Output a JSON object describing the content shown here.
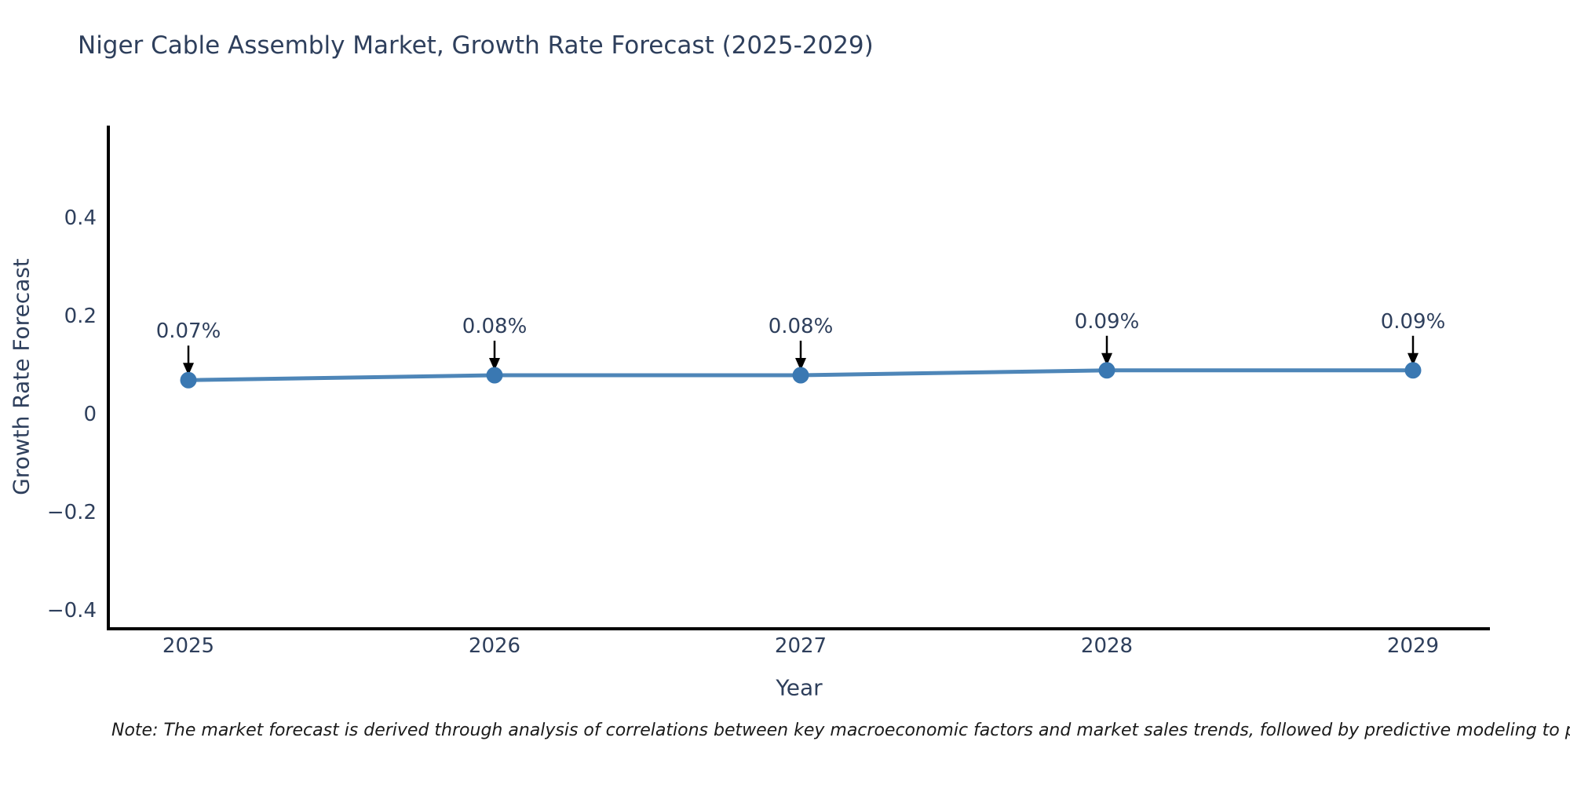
{
  "title": "Niger Cable Assembly Market, Growth Rate Forecast (2025-2029)",
  "note": "Note: The market forecast is derived through analysis of correlations between key macroeconomic factors and market sales trends, followed by predictive modeling to project future sales.",
  "chart_data": {
    "type": "line",
    "title": "Niger Cable Assembly Market, Growth Rate Forecast (2025-2029)",
    "xlabel": "Year",
    "ylabel": "Growth Rate Forecast",
    "x": [
      2025,
      2026,
      2027,
      2028,
      2029
    ],
    "series": [
      {
        "name": "Growth Rate Forecast",
        "values": [
          0.07,
          0.08,
          0.08,
          0.09,
          0.09
        ]
      }
    ],
    "point_labels": [
      "0.07%",
      "0.08%",
      "0.08%",
      "0.09%",
      "0.09%"
    ],
    "xtick_labels": [
      "2025",
      "2026",
      "2027",
      "2028",
      "2029"
    ],
    "yticks": [
      0.4,
      0.2,
      0,
      -0.2,
      -0.4
    ],
    "ytick_labels": [
      "0.4",
      "0.2",
      "0",
      "−0.2",
      "−0.4"
    ],
    "ylim": [
      -0.44,
      0.59
    ],
    "grid": false,
    "legend_position": "none",
    "line_color": "#4e86b8",
    "marker_color": "#3a78b2",
    "arrow_color": "#000000",
    "axis_color": "#000000",
    "text_color": "#2e3f5c"
  }
}
